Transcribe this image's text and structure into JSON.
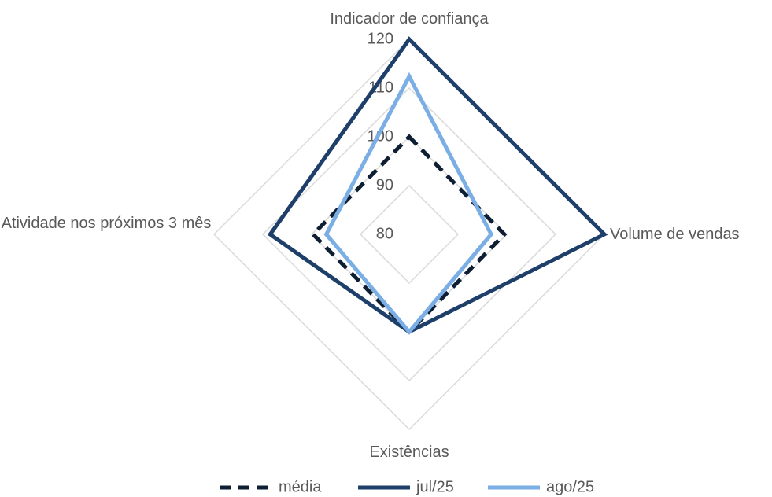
{
  "chart_data": {
    "type": "radar",
    "categories": [
      "Indicador de confiança",
      "Volume de vendas",
      "Existências",
      "Atividade nos próximos 3 mês"
    ],
    "series": [
      {
        "name": "média",
        "color": "#0e1e33",
        "dashed": true,
        "values": [
          100,
          99.5,
          100,
          99.7
        ]
      },
      {
        "name": "jul/25",
        "color": "#1f3f6b",
        "values": [
          120,
          120,
          100,
          108.5
        ]
      },
      {
        "name": "ago/25",
        "color": "#7aaee4",
        "values": [
          112.4,
          96.8,
          100,
          97
        ]
      }
    ],
    "ylim": [
      80,
      120
    ],
    "yticks": [
      80,
      90,
      100,
      110,
      120
    ],
    "grid": true,
    "legend": "bottom"
  }
}
